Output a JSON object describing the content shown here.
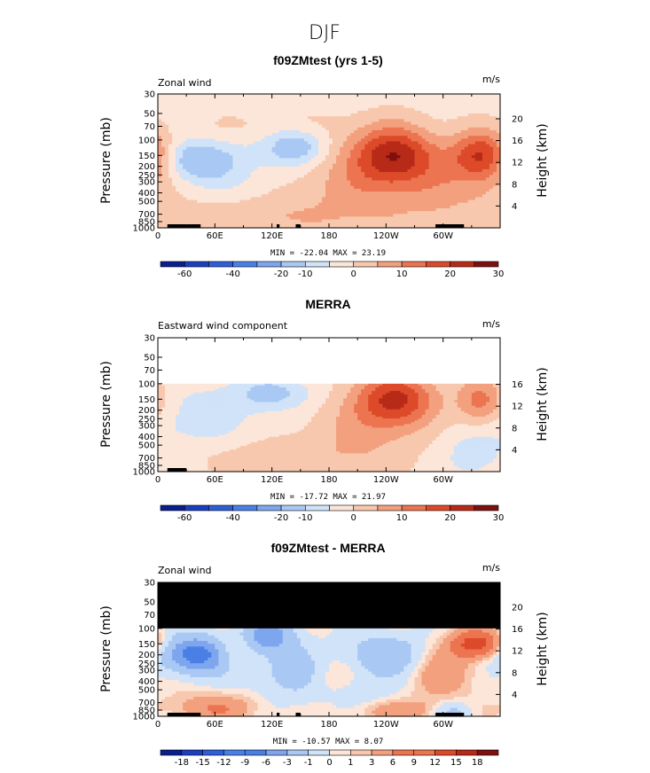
{
  "figure": {
    "title": "DJF"
  },
  "colors": {
    "main_scale": [
      "#0a1f8c",
      "#1a3fbf",
      "#2e5fd8",
      "#4a80e6",
      "#7da6ee",
      "#aac8f4",
      "#d0e3f8",
      "#fce6d9",
      "#f8c8ae",
      "#f3a07e",
      "#ec7450",
      "#dd4a2a",
      "#b82a18",
      "#7e1010"
    ],
    "diff_scale": [
      "#0a1f8c",
      "#1a3fbf",
      "#2e5fd8",
      "#4a80e6",
      "#7da6ee",
      "#aac8f4",
      "#d0e3f8",
      "#fce6d9",
      "#f8c8ae",
      "#f3a07e",
      "#ec7450",
      "#dd4a2a",
      "#b82a18",
      "#7e1010"
    ]
  },
  "chart_data": [
    {
      "type": "heatmap",
      "title": "f09ZMtest (yrs 1-5)",
      "variable_label": "Zonal wind",
      "units": "m/s",
      "xlabel": "",
      "ylabel": "Pressure (mb)",
      "ylabel_right": "Height (km)",
      "x_ticks": [
        "0",
        "60E",
        "120E",
        "180",
        "120W",
        "60W"
      ],
      "x_tick_lon": [
        0,
        60,
        120,
        180,
        240,
        300
      ],
      "xlim": [
        0,
        360
      ],
      "pressure_ticks": [
        "30",
        "50",
        "70",
        "100",
        "150",
        "200",
        "250",
        "300",
        "400",
        "500",
        "700",
        "850",
        "1000"
      ],
      "pressure_vals": [
        30,
        50,
        70,
        100,
        150,
        200,
        250,
        300,
        400,
        500,
        700,
        850,
        1000
      ],
      "height_ticks": [
        "20",
        "16",
        "12",
        "8",
        "4"
      ],
      "height_vals": [
        20,
        16,
        12,
        8,
        4
      ],
      "ylim": [
        1000,
        30
      ],
      "top_p": 30,
      "masked_above": null,
      "min_max": "MIN = -22.04   MAX =  23.19",
      "min": -22.04,
      "max": 23.19,
      "levels": [
        -70,
        -60,
        -50,
        -40,
        -30,
        -20,
        -10,
        -5,
        0,
        5,
        10,
        15,
        20,
        25,
        30
      ],
      "colorbar_labels": [
        "-60",
        "-40",
        "-20",
        "-10",
        "0",
        "10",
        "20",
        "30"
      ],
      "colorbar_label_at_boundary": [
        1,
        3,
        5,
        6,
        8,
        10,
        12,
        14
      ],
      "features": [
        {
          "lon": 145,
          "p": 120,
          "amp": -14,
          "slon": 22,
          "sp": 0.35
        },
        {
          "lon": 40,
          "p": 170,
          "amp": -12,
          "slon": 25,
          "sp": 0.35
        },
        {
          "lon": 70,
          "p": 200,
          "amp": -5,
          "slon": 40,
          "sp": 0.5
        },
        {
          "lon": 248,
          "p": 150,
          "amp": 23.19,
          "slon": 32,
          "sp": 0.55
        },
        {
          "lon": 341,
          "p": 150,
          "amp": 20,
          "slon": 22,
          "sp": 0.45
        },
        {
          "lon": 210,
          "p": 400,
          "amp": 8,
          "slon": 55,
          "sp": 0.9
        },
        {
          "lon": 320,
          "p": 400,
          "amp": 7,
          "slon": 40,
          "sp": 0.8
        },
        {
          "lon": 90,
          "p": 750,
          "amp": 6,
          "slon": 60,
          "sp": 0.3
        },
        {
          "lon": 330,
          "p": 800,
          "amp": -4,
          "slon": 20,
          "sp": 0.3
        },
        {
          "lon": 120,
          "p": 70,
          "amp": 3,
          "slon": 60,
          "sp": 0.3
        }
      ],
      "base": -2,
      "terrain": [
        [
          10,
          30
        ],
        [
          30,
          45
        ],
        [
          125,
          128
        ],
        [
          145,
          150
        ],
        [
          292,
          322
        ]
      ]
    },
    {
      "type": "heatmap",
      "title": "MERRA",
      "variable_label": "Eastward wind component",
      "units": "m/s",
      "xlabel": "",
      "ylabel": "Pressure (mb)",
      "ylabel_right": "Height (km)",
      "x_ticks": [
        "0",
        "60E",
        "120E",
        "180",
        "120W",
        "60W"
      ],
      "x_tick_lon": [
        0,
        60,
        120,
        180,
        240,
        300
      ],
      "xlim": [
        0,
        360
      ],
      "pressure_ticks": [
        "30",
        "50",
        "70",
        "100",
        "150",
        "200",
        "250",
        "300",
        "400",
        "500",
        "700",
        "850",
        "1000"
      ],
      "pressure_vals": [
        30,
        50,
        70,
        100,
        150,
        200,
        250,
        300,
        400,
        500,
        700,
        850,
        1000
      ],
      "height_ticks": [
        "16",
        "12",
        "8",
        "4"
      ],
      "height_vals": [
        16,
        12,
        8,
        4
      ],
      "ylim": [
        1000,
        30
      ],
      "top_p": 100,
      "masked_above": null,
      "min_max": "MIN = -17.72   MAX =  21.97",
      "min": -17.72,
      "max": 21.97,
      "levels": [
        -70,
        -60,
        -50,
        -40,
        -30,
        -20,
        -10,
        -5,
        0,
        5,
        10,
        15,
        20,
        25,
        30
      ],
      "colorbar_labels": [
        "-60",
        "-40",
        "-20",
        "-10",
        "0",
        "10",
        "20",
        "30"
      ],
      "colorbar_label_at_boundary": [
        1,
        3,
        5,
        6,
        8,
        10,
        12,
        14
      ],
      "features": [
        {
          "lon": 120,
          "p": 130,
          "amp": -10,
          "slon": 30,
          "sp": 0.3
        },
        {
          "lon": 40,
          "p": 250,
          "amp": -5,
          "slon": 45,
          "sp": 0.6
        },
        {
          "lon": 250,
          "p": 150,
          "amp": 21.97,
          "slon": 30,
          "sp": 0.5
        },
        {
          "lon": 340,
          "p": 160,
          "amp": 15,
          "slon": 18,
          "sp": 0.45
        },
        {
          "lon": 215,
          "p": 400,
          "amp": 7,
          "slon": 45,
          "sp": 0.8
        },
        {
          "lon": 110,
          "p": 700,
          "amp": 5,
          "slon": 55,
          "sp": 0.35
        },
        {
          "lon": 330,
          "p": 650,
          "amp": -5,
          "slon": 25,
          "sp": 0.5
        }
      ],
      "base": -2,
      "terrain": [
        [
          10,
          30
        ]
      ]
    },
    {
      "type": "heatmap",
      "title": "f09ZMtest - MERRA",
      "variable_label": "Zonal wind",
      "units": "m/s",
      "xlabel": "",
      "ylabel": "Pressure (mb)",
      "ylabel_right": "Height (km)",
      "x_ticks": [
        "0",
        "60E",
        "120E",
        "180",
        "120W",
        "60W"
      ],
      "x_tick_lon": [
        0,
        60,
        120,
        180,
        240,
        300
      ],
      "xlim": [
        0,
        360
      ],
      "pressure_ticks": [
        "30",
        "50",
        "70",
        "100",
        "150",
        "200",
        "250",
        "300",
        "400",
        "500",
        "700",
        "850",
        "1000"
      ],
      "pressure_vals": [
        30,
        50,
        70,
        100,
        150,
        200,
        250,
        300,
        400,
        500,
        700,
        850,
        1000
      ],
      "height_ticks": [
        "20",
        "16",
        "12",
        "8",
        "4"
      ],
      "height_vals": [
        20,
        16,
        12,
        8,
        4
      ],
      "ylim": [
        1000,
        30
      ],
      "top_p": 30,
      "masked_above": 100,
      "min_max": "MIN = -10.57   MAX =   8.07",
      "min": -10.57,
      "max": 8.07,
      "levels": [
        -21,
        -18,
        -15,
        -12,
        -9,
        -6,
        -3,
        -1,
        0,
        1,
        3,
        6,
        9,
        12,
        15,
        18,
        21
      ],
      "colorbar_labels": [
        "-18",
        "-15",
        "-12",
        "-9",
        "-6",
        "-3",
        "-1",
        "0",
        "1",
        "3",
        "6",
        "9",
        "12",
        "15",
        "18"
      ],
      "colorbar_label_at_boundary": [
        1,
        2,
        3,
        4,
        5,
        6,
        7,
        8,
        9,
        10,
        11,
        12,
        13,
        14,
        15
      ],
      "features": [
        {
          "lon": 40,
          "p": 200,
          "amp": -10.57,
          "slon": 25,
          "sp": 0.35
        },
        {
          "lon": 115,
          "p": 120,
          "amp": -7,
          "slon": 20,
          "sp": 0.3
        },
        {
          "lon": 140,
          "p": 300,
          "amp": -4,
          "slon": 30,
          "sp": 0.5
        },
        {
          "lon": 240,
          "p": 200,
          "amp": -5,
          "slon": 30,
          "sp": 0.4
        },
        {
          "lon": 335,
          "p": 150,
          "amp": 8.07,
          "slon": 18,
          "sp": 0.25
        },
        {
          "lon": 80,
          "p": 180,
          "amp": 3,
          "slon": 15,
          "sp": 0.3
        },
        {
          "lon": 180,
          "p": 400,
          "amp": 2.5,
          "slon": 20,
          "sp": 0.5
        },
        {
          "lon": 300,
          "p": 300,
          "amp": 3,
          "slon": 25,
          "sp": 0.5
        },
        {
          "lon": 60,
          "p": 800,
          "amp": 3.5,
          "slon": 30,
          "sp": 0.25
        },
        {
          "lon": 250,
          "p": 850,
          "amp": 3,
          "slon": 40,
          "sp": 0.2
        },
        {
          "lon": 200,
          "p": 600,
          "amp": -2.5,
          "slon": 30,
          "sp": 0.4
        },
        {
          "lon": 310,
          "p": 900,
          "amp": -4,
          "slon": 15,
          "sp": 0.2
        }
      ],
      "base": -0.5,
      "terrain": [
        [
          10,
          30
        ],
        [
          30,
          45
        ],
        [
          125,
          128
        ],
        [
          145,
          150
        ],
        [
          292,
          322
        ]
      ]
    }
  ]
}
